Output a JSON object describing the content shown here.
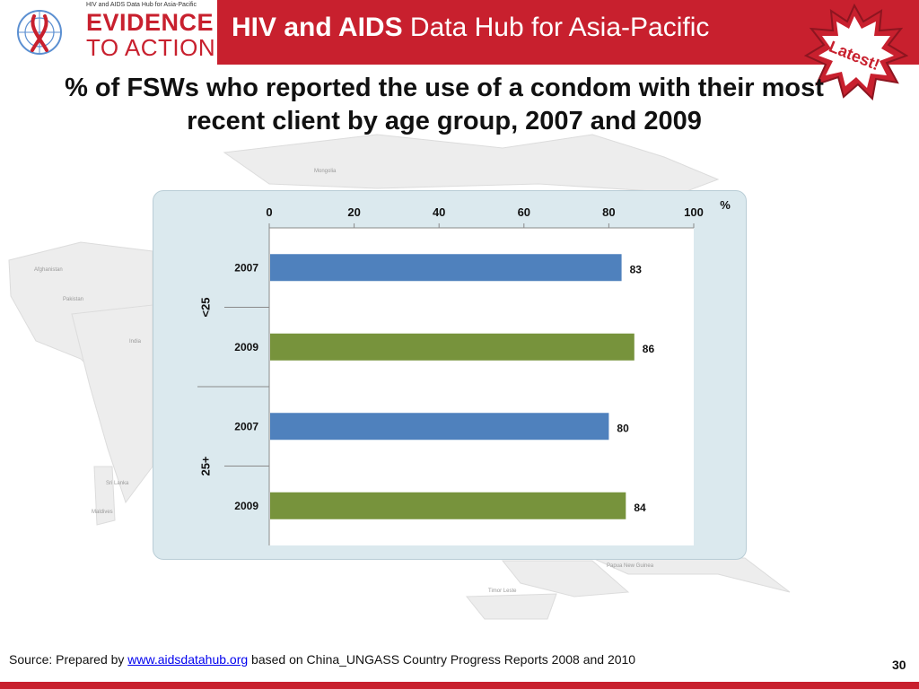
{
  "header": {
    "logo_subtitle": "HIV and AIDS Data Hub for Asia-Pacific",
    "logo_line1": "EVIDENCE",
    "logo_line2": "TO ACTION",
    "title_bold": "HIV and AIDS",
    "title_rest": " Data Hub for Asia-Pacific",
    "badge": "Latest!"
  },
  "slide_title": "% of FSWs who reported the use of a condom with their most recent client by age group, 2007 and 2009",
  "map_labels": [
    "Mongolia",
    "Afghanistan",
    "Pakistan",
    "India",
    "Sri Lanka",
    "Maldives",
    "Papua New Guinea",
    "Timor Leste"
  ],
  "chart_data": {
    "type": "bar",
    "orientation": "horizontal",
    "unit_label": "%",
    "xlim": [
      0,
      100
    ],
    "x_ticks": [
      0,
      20,
      40,
      60,
      80,
      100
    ],
    "x_axis_position": "top",
    "groups": [
      {
        "label": "<25",
        "bars": [
          {
            "year": "2007",
            "value": 83,
            "color": "#4f81bd"
          },
          {
            "year": "2009",
            "value": 86,
            "color": "#77933c"
          }
        ]
      },
      {
        "label": "25+",
        "bars": [
          {
            "year": "2007",
            "value": 80,
            "color": "#4f81bd"
          },
          {
            "year": "2009",
            "value": 84,
            "color": "#77933c"
          }
        ]
      }
    ],
    "grid": false,
    "legend": "none"
  },
  "footer": {
    "source_prefix": "Source: Prepared by ",
    "source_link": "www.aidsdatahub.org",
    "source_suffix": "  based on China_UNGASS Country Progress Reports 2008 and 2010",
    "page_number": "30"
  },
  "colors": {
    "brand_red": "#c8202e",
    "series_2007": "#4f81bd",
    "series_2009": "#77933c",
    "panel_bg": "#dbe9ee"
  }
}
